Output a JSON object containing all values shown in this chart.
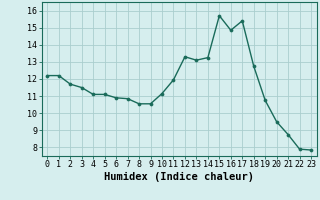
{
  "x": [
    0,
    1,
    2,
    3,
    4,
    5,
    6,
    7,
    8,
    9,
    10,
    11,
    12,
    13,
    14,
    15,
    16,
    17,
    18,
    19,
    20,
    21,
    22,
    23
  ],
  "y": [
    12.2,
    12.2,
    11.7,
    11.5,
    11.1,
    11.1,
    10.9,
    10.85,
    10.55,
    10.55,
    11.15,
    11.95,
    13.3,
    13.1,
    13.25,
    15.7,
    14.85,
    15.4,
    12.75,
    10.75,
    9.5,
    8.75,
    7.9,
    7.85
  ],
  "line_color": "#1a6b5a",
  "marker_color": "#1a6b5a",
  "bg_color": "#d6eeee",
  "grid_color": "#aacece",
  "xlabel": "Humidex (Indice chaleur)",
  "xlim": [
    -0.5,
    23.5
  ],
  "ylim": [
    7.5,
    16.5
  ],
  "yticks": [
    8,
    9,
    10,
    11,
    12,
    13,
    14,
    15,
    16
  ],
  "xticks": [
    0,
    1,
    2,
    3,
    4,
    5,
    6,
    7,
    8,
    9,
    10,
    11,
    12,
    13,
    14,
    15,
    16,
    17,
    18,
    19,
    20,
    21,
    22,
    23
  ],
  "tick_fontsize": 6,
  "label_fontsize": 7.5
}
